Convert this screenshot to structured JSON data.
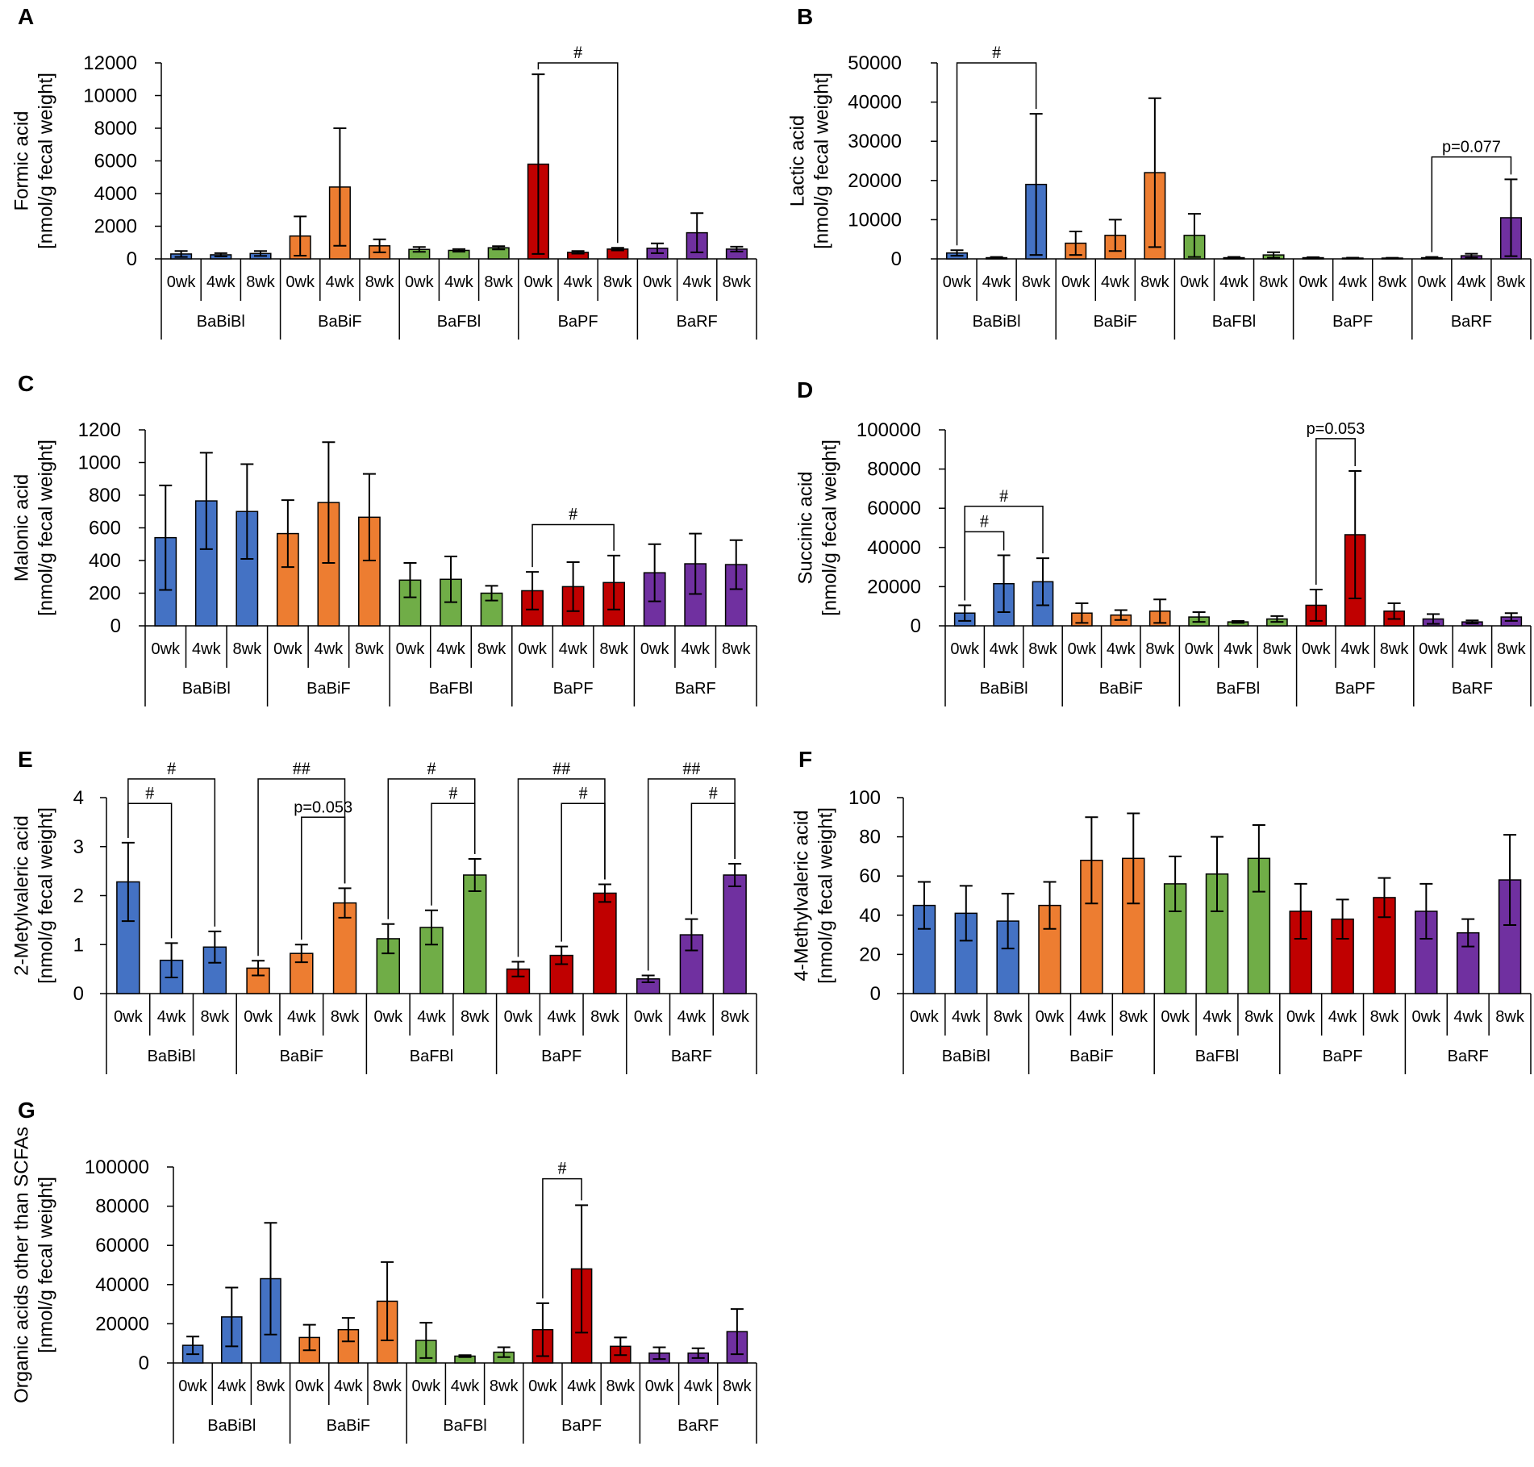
{
  "colors": {
    "BaBiBl": "#4472C4",
    "BaBiF": "#ED7D31",
    "BaFBl": "#70AD47",
    "BaPF": "#C00000",
    "BaRF": "#7030A0",
    "axis": "#000000"
  },
  "chart_data": [
    {
      "panel": "A",
      "type": "bar",
      "ylabel": [
        "Formic acid",
        "[nmol/g fecal weight]"
      ],
      "ylim": [
        0,
        12000
      ],
      "yticks": [
        "0",
        "2000",
        "4000",
        "6000",
        "8000",
        "10000",
        "12000"
      ],
      "timepoints": [
        "0wk",
        "4wk",
        "8wk"
      ],
      "groups": [
        "BaBiBl",
        "BaBiF",
        "BaFBl",
        "BaPF",
        "BaRF"
      ],
      "values": [
        [
          300,
          250,
          330
        ],
        [
          1400,
          4400,
          800
        ],
        [
          580,
          520,
          680
        ],
        [
          5800,
          400,
          600
        ],
        [
          650,
          1600,
          600
        ]
      ],
      "errors": [
        [
          180,
          100,
          150
        ],
        [
          1200,
          3600,
          400
        ],
        [
          150,
          80,
          100
        ],
        [
          5500,
          80,
          80
        ],
        [
          300,
          1200,
          150
        ]
      ],
      "annotations": [
        {
          "label": "#",
          "from": [
            3,
            0
          ],
          "to": [
            3,
            2
          ],
          "y": 12000
        }
      ]
    },
    {
      "panel": "B",
      "type": "bar",
      "ylabel": [
        "Lactic acid",
        "[nmol/g fecal weight]"
      ],
      "ylim": [
        0,
        50000
      ],
      "yticks": [
        "0",
        "10000",
        "20000",
        "30000",
        "40000",
        "50000"
      ],
      "timepoints": [
        "0wk",
        "4wk",
        "8wk"
      ],
      "groups": [
        "BaBiBl",
        "BaBiF",
        "BaFBl",
        "BaPF",
        "BaRF"
      ],
      "values": [
        [
          1500,
          300,
          19000
        ],
        [
          4000,
          6000,
          22000
        ],
        [
          6000,
          300,
          1000
        ],
        [
          300,
          200,
          200
        ],
        [
          300,
          800,
          10500
        ]
      ],
      "errors": [
        [
          700,
          200,
          18000
        ],
        [
          3000,
          4000,
          19000
        ],
        [
          5500,
          200,
          700
        ],
        [
          150,
          100,
          80
        ],
        [
          200,
          500,
          9800
        ]
      ],
      "annotations": [
        {
          "label": "#",
          "from": [
            0,
            0
          ],
          "to": [
            0,
            2
          ],
          "y": 50000
        },
        {
          "label": "p=0.077",
          "from": [
            4,
            0
          ],
          "to": [
            4,
            2
          ],
          "y": 26000
        }
      ]
    },
    {
      "panel": "C",
      "type": "bar",
      "ylabel": [
        "Malonic acid",
        "[nmol/g fecal weight]"
      ],
      "ylim": [
        0,
        1200
      ],
      "yticks": [
        "0",
        "200",
        "400",
        "600",
        "800",
        "1000",
        "1200"
      ],
      "timepoints": [
        "0wk",
        "4wk",
        "8wk"
      ],
      "groups": [
        "BaBiBl",
        "BaBiF",
        "BaFBl",
        "BaPF",
        "BaRF"
      ],
      "values": [
        [
          540,
          765,
          700
        ],
        [
          565,
          755,
          665
        ],
        [
          280,
          285,
          200
        ],
        [
          215,
          240,
          265
        ],
        [
          325,
          380,
          375
        ]
      ],
      "errors": [
        [
          320,
          295,
          290
        ],
        [
          205,
          370,
          265
        ],
        [
          105,
          140,
          45
        ],
        [
          115,
          150,
          165
        ],
        [
          175,
          185,
          150
        ]
      ],
      "annotations": [
        {
          "label": "#",
          "from": [
            3,
            0
          ],
          "to": [
            3,
            2
          ],
          "y": 620
        }
      ]
    },
    {
      "panel": "D",
      "type": "bar",
      "ylabel": [
        "Succinic acid",
        "[nmol/g fecal weight]"
      ],
      "ylim": [
        0,
        100000
      ],
      "yticks": [
        "0",
        "20000",
        "40000",
        "60000",
        "80000",
        "100000"
      ],
      "timepoints": [
        "0wk",
        "4wk",
        "8wk"
      ],
      "groups": [
        "BaBiBl",
        "BaBiF",
        "BaFBl",
        "BaPF",
        "BaRF"
      ],
      "values": [
        [
          6500,
          21500,
          22500
        ],
        [
          6500,
          5500,
          7500
        ],
        [
          4500,
          2000,
          3500
        ],
        [
          10500,
          46500,
          7500
        ],
        [
          3500,
          2000,
          4500
        ]
      ],
      "errors": [
        [
          4000,
          14500,
          12000
        ],
        [
          5000,
          2500,
          6000
        ],
        [
          2500,
          500,
          1500
        ],
        [
          8000,
          32500,
          4000
        ],
        [
          2500,
          800,
          2000
        ]
      ],
      "annotations": [
        {
          "label": "#",
          "from": [
            0,
            0
          ],
          "to": [
            0,
            1
          ],
          "y": 48000
        },
        {
          "label": "#",
          "from": [
            0,
            0
          ],
          "to": [
            0,
            2
          ],
          "y": 61000
        },
        {
          "label": "p=0.053",
          "from": [
            3,
            0
          ],
          "to": [
            3,
            1
          ],
          "y": 95500
        }
      ]
    },
    {
      "panel": "E",
      "type": "bar",
      "ylabel": [
        "2-Metylvaleric acid",
        "[nmol/g fecal weight]"
      ],
      "ylim": [
        0,
        4
      ],
      "yticks": [
        "0",
        "1",
        "2",
        "3",
        "4"
      ],
      "timepoints": [
        "0wk",
        "4wk",
        "8wk"
      ],
      "groups": [
        "BaBiBl",
        "BaBiF",
        "BaFBl",
        "BaPF",
        "BaRF"
      ],
      "values": [
        [
          2.28,
          0.68,
          0.95
        ],
        [
          0.52,
          0.82,
          1.85
        ],
        [
          1.12,
          1.35,
          2.42
        ],
        [
          0.5,
          0.78,
          2.05
        ],
        [
          0.3,
          1.2,
          2.42
        ]
      ],
      "errors": [
        [
          0.8,
          0.35,
          0.32
        ],
        [
          0.15,
          0.18,
          0.3
        ],
        [
          0.3,
          0.35,
          0.33
        ],
        [
          0.15,
          0.18,
          0.18
        ],
        [
          0.07,
          0.32,
          0.23
        ]
      ],
      "annotations": [
        {
          "label": "#",
          "from": [
            0,
            0
          ],
          "to": [
            0,
            2
          ],
          "y": 4.38
        },
        {
          "label": "#",
          "from": [
            0,
            0
          ],
          "to": [
            0,
            1
          ],
          "y": 3.88
        },
        {
          "label": "##",
          "from": [
            1,
            0
          ],
          "to": [
            1,
            2
          ],
          "y": 4.38
        },
        {
          "label": "p=0.053",
          "from": [
            1,
            1
          ],
          "to": [
            1,
            2
          ],
          "y": 3.6
        },
        {
          "label": "#",
          "from": [
            2,
            0
          ],
          "to": [
            2,
            2
          ],
          "y": 4.38
        },
        {
          "label": "#",
          "from": [
            2,
            1
          ],
          "to": [
            2,
            2
          ],
          "y": 3.88
        },
        {
          "label": "##",
          "from": [
            3,
            0
          ],
          "to": [
            3,
            2
          ],
          "y": 4.38
        },
        {
          "label": "#",
          "from": [
            3,
            1
          ],
          "to": [
            3,
            2
          ],
          "y": 3.88
        },
        {
          "label": "##",
          "from": [
            4,
            0
          ],
          "to": [
            4,
            2
          ],
          "y": 4.38
        },
        {
          "label": "#",
          "from": [
            4,
            1
          ],
          "to": [
            4,
            2
          ],
          "y": 3.88
        }
      ]
    },
    {
      "panel": "F",
      "type": "bar",
      "ylabel": [
        "4-Methylvaleric acid",
        "[nmol/g fecal weight]"
      ],
      "ylim": [
        0,
        100
      ],
      "yticks": [
        "0",
        "20",
        "40",
        "60",
        "80",
        "100"
      ],
      "timepoints": [
        "0wk",
        "4wk",
        "8wk"
      ],
      "groups": [
        "BaBiBl",
        "BaBiF",
        "BaFBl",
        "BaPF",
        "BaRF"
      ],
      "values": [
        [
          45,
          41,
          37
        ],
        [
          45,
          68,
          69
        ],
        [
          56,
          61,
          69
        ],
        [
          42,
          38,
          49
        ],
        [
          42,
          31,
          58
        ]
      ],
      "errors": [
        [
          12,
          14,
          14
        ],
        [
          12,
          22,
          23
        ],
        [
          14,
          19,
          17
        ],
        [
          14,
          10,
          10
        ],
        [
          14,
          7,
          23
        ]
      ],
      "annotations": []
    },
    {
      "panel": "G",
      "type": "bar",
      "ylabel": [
        "Organic acids other than SCFAs",
        "[nmol/g fecal weight]"
      ],
      "ylim": [
        0,
        100000
      ],
      "yticks": [
        "0",
        "20000",
        "40000",
        "60000",
        "80000",
        "100000"
      ],
      "timepoints": [
        "0wk",
        "4wk",
        "8wk"
      ],
      "groups": [
        "BaBiBl",
        "BaBiF",
        "BaFBl",
        "BaPF",
        "BaRF"
      ],
      "values": [
        [
          9000,
          23500,
          43000
        ],
        [
          13000,
          17000,
          31500
        ],
        [
          11500,
          3500,
          5500
        ],
        [
          17000,
          48000,
          8500
        ],
        [
          5000,
          5000,
          16000
        ]
      ],
      "errors": [
        [
          4500,
          15000,
          28500
        ],
        [
          6500,
          6000,
          20000
        ],
        [
          9000,
          500,
          2500
        ],
        [
          13500,
          32500,
          4500
        ],
        [
          3000,
          2500,
          11500
        ]
      ],
      "annotations": [
        {
          "label": "#",
          "from": [
            3,
            0
          ],
          "to": [
            3,
            1
          ],
          "y": 94000
        }
      ]
    }
  ]
}
